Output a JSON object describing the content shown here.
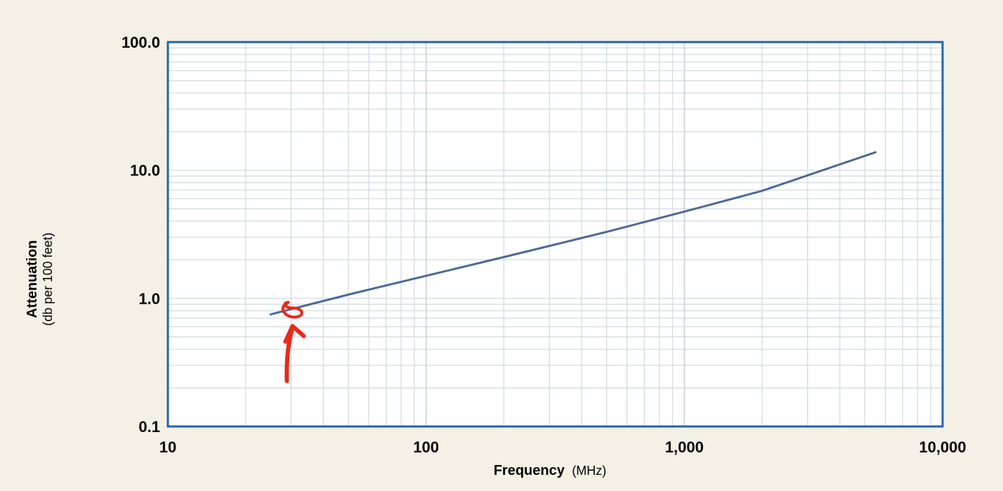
{
  "chart_data": {
    "type": "line",
    "title": "",
    "xlabel": "Frequency",
    "xlabel_unit": "(MHz)",
    "ylabel": "Attenuation",
    "ylabel_unit": "(db per 100 feet)",
    "x_scale": "log",
    "y_scale": "log",
    "xlim": [
      10,
      10000
    ],
    "ylim": [
      0.1,
      100
    ],
    "x_ticks": [
      10,
      100,
      1000,
      10000
    ],
    "x_tick_labels": [
      "10",
      "100",
      "1,000",
      "10,000"
    ],
    "y_ticks": [
      0.1,
      1,
      10,
      100
    ],
    "y_tick_labels": [
      "0.1",
      "1.0",
      "10.0",
      "100.0"
    ],
    "grid": true,
    "colors": {
      "line": "#4a6a94",
      "frame": "#1f64b0",
      "grid": "#d6dde4",
      "plot_bg": "#ffffff",
      "page_bg": "#f5f0e6",
      "annotation": "#e8291c"
    },
    "series": [
      {
        "x": [
          25,
          50,
          100,
          200,
          500,
          1000,
          2000,
          5500
        ],
        "y": [
          0.75,
          1.07,
          1.5,
          2.1,
          3.3,
          4.75,
          6.9,
          13.8
        ]
      }
    ],
    "annotation": {
      "type": "hand-drawn-circle-and-arrow",
      "target": {
        "x": 30,
        "y": 0.8
      }
    }
  }
}
